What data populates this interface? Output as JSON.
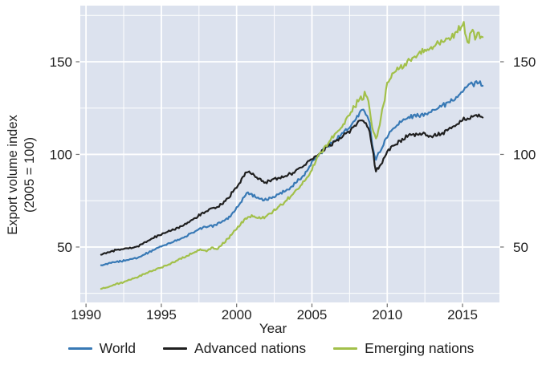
{
  "figure": {
    "y_axis_title_line1": "Export volume index",
    "y_axis_title_line2": "(2005 = 100)",
    "x_axis_title": "Year"
  },
  "chart_data": {
    "type": "line",
    "title": "",
    "xlabel": "Year",
    "ylabel": "Export volume index (2005 = 100)",
    "x_ticks": [
      1990,
      1995,
      2000,
      2005,
      2010,
      2015
    ],
    "y_ticks": [
      50,
      100,
      150
    ],
    "y_ticks_right": [
      50,
      100,
      150
    ],
    "x_minor_gridlines": [
      1992.5,
      1997.5,
      2002.5,
      2007.5,
      2012.5
    ],
    "y_minor_gridlines": [
      25,
      75,
      125,
      175
    ],
    "xlim": [
      1989.62,
      2017.45
    ],
    "ylim": [
      20.1,
      180.3
    ],
    "x_range_data": [
      1991.0,
      2016.3
    ],
    "grid": "white gridlines on light blue panel",
    "legend_position": "bottom",
    "colors": {
      "plot_background": "#dce2ee",
      "gridline": "#ffffff",
      "axis_text": "#1f1f1f",
      "tick_mark": "#6e6e6e",
      "world": "#3879b5",
      "advanced": "#1f1f1f",
      "emerging": "#a2c04a"
    },
    "series": [
      {
        "name": "World",
        "color": "#3879b5",
        "noise": 0.9,
        "anchors": [
          [
            1991,
            40
          ],
          [
            1991.5,
            41
          ],
          [
            1992,
            42
          ],
          [
            1992.5,
            42.6
          ],
          [
            1993,
            43.5
          ],
          [
            1993.5,
            44.5
          ],
          [
            1994,
            46.5
          ],
          [
            1994.5,
            48.5
          ],
          [
            1995,
            50.5
          ],
          [
            1995.5,
            52
          ],
          [
            1996,
            53.5
          ],
          [
            1996.5,
            55
          ],
          [
            1997,
            57.5
          ],
          [
            1997.5,
            59.5
          ],
          [
            1998,
            61
          ],
          [
            1998.5,
            61.6
          ],
          [
            1999,
            63.5
          ],
          [
            1999.5,
            66
          ],
          [
            2000,
            71
          ],
          [
            2000.7,
            79.5
          ],
          [
            2001.2,
            77.5
          ],
          [
            2001.8,
            75
          ],
          [
            2002.3,
            76.5
          ],
          [
            2003,
            79.5
          ],
          [
            2003.5,
            81.5
          ],
          [
            2004,
            85.5
          ],
          [
            2004.5,
            89
          ],
          [
            2005,
            96
          ],
          [
            2005.5,
            100
          ],
          [
            2006,
            104.5
          ],
          [
            2006.5,
            107
          ],
          [
            2007,
            111
          ],
          [
            2007.5,
            114.5
          ],
          [
            2008,
            120
          ],
          [
            2008.3,
            124
          ],
          [
            2008.6,
            122
          ],
          [
            2008.8,
            119
          ],
          [
            2009,
            106
          ],
          [
            2009.2,
            97
          ],
          [
            2009.45,
            100.5
          ],
          [
            2009.7,
            104.5
          ],
          [
            2010,
            110
          ],
          [
            2010.4,
            114
          ],
          [
            2010.8,
            117
          ],
          [
            2011.2,
            119
          ],
          [
            2011.6,
            120.5
          ],
          [
            2012,
            121
          ],
          [
            2012.5,
            122
          ],
          [
            2013,
            123.5
          ],
          [
            2013.5,
            125.5
          ],
          [
            2014,
            127.5
          ],
          [
            2014.5,
            130
          ],
          [
            2015,
            134
          ],
          [
            2015.3,
            136.5
          ],
          [
            2015.55,
            139.5
          ],
          [
            2015.7,
            137
          ],
          [
            2015.9,
            139.5
          ],
          [
            2016.05,
            137.5
          ],
          [
            2016.15,
            139
          ],
          [
            2016.3,
            137.5
          ]
        ]
      },
      {
        "name": "Advanced nations",
        "color": "#1f1f1f",
        "noise": 0.9,
        "anchors": [
          [
            1991,
            46
          ],
          [
            1991.5,
            47
          ],
          [
            1992,
            48.5
          ],
          [
            1992.5,
            49
          ],
          [
            1993,
            49.5
          ],
          [
            1993.5,
            50.5
          ],
          [
            1994,
            53
          ],
          [
            1994.5,
            55
          ],
          [
            1995,
            57
          ],
          [
            1995.5,
            58.5
          ],
          [
            1996,
            60
          ],
          [
            1996.5,
            62
          ],
          [
            1997,
            64.5
          ],
          [
            1997.5,
            67
          ],
          [
            1998,
            69.5
          ],
          [
            1998.4,
            71
          ],
          [
            1998.7,
            71.5
          ],
          [
            1999.1,
            74
          ],
          [
            1999.5,
            77
          ],
          [
            2000,
            82.5
          ],
          [
            2000.7,
            91
          ],
          [
            2001.1,
            89
          ],
          [
            2001.9,
            84.5
          ],
          [
            2002.4,
            86.5
          ],
          [
            2003,
            87.5
          ],
          [
            2003.7,
            90
          ],
          [
            2004.3,
            93
          ],
          [
            2005,
            97.5
          ],
          [
            2005.5,
            100
          ],
          [
            2006,
            104
          ],
          [
            2006.5,
            106.5
          ],
          [
            2007,
            109.5
          ],
          [
            2007.5,
            112.5
          ],
          [
            2008,
            116.5
          ],
          [
            2008.3,
            118.5
          ],
          [
            2008.6,
            117
          ],
          [
            2008.85,
            112
          ],
          [
            2009.05,
            101
          ],
          [
            2009.25,
            91
          ],
          [
            2009.5,
            93.5
          ],
          [
            2009.75,
            97.5
          ],
          [
            2010,
            101.5
          ],
          [
            2010.4,
            104.5
          ],
          [
            2010.8,
            107
          ],
          [
            2011.3,
            109.5
          ],
          [
            2011.7,
            110.5
          ],
          [
            2012.1,
            111
          ],
          [
            2012.5,
            111
          ],
          [
            2012.9,
            109.5
          ],
          [
            2013.3,
            110.5
          ],
          [
            2013.7,
            111.5
          ],
          [
            2014.1,
            113.5
          ],
          [
            2014.5,
            115.5
          ],
          [
            2014.8,
            117.5
          ],
          [
            2015.1,
            119
          ],
          [
            2015.4,
            119.5
          ],
          [
            2015.7,
            120.5
          ],
          [
            2016,
            121
          ],
          [
            2016.15,
            120.5
          ],
          [
            2016.3,
            119.5
          ]
        ]
      },
      {
        "name": "Emerging nations",
        "color": "#a2c04a",
        "noise": 1.1,
        "anchors": [
          [
            1991,
            27.5
          ],
          [
            1991.5,
            28.5
          ],
          [
            1992,
            30
          ],
          [
            1992.5,
            31
          ],
          [
            1993,
            32.5
          ],
          [
            1993.5,
            34
          ],
          [
            1994,
            36
          ],
          [
            1994.5,
            37.5
          ],
          [
            1995,
            39
          ],
          [
            1995.5,
            40.5
          ],
          [
            1996,
            42.5
          ],
          [
            1996.5,
            44.5
          ],
          [
            1997,
            46.5
          ],
          [
            1997.6,
            48.5
          ],
          [
            1998,
            48
          ],
          [
            1998.4,
            49.8
          ],
          [
            1998.7,
            48.5
          ],
          [
            1999,
            51
          ],
          [
            1999.5,
            55
          ],
          [
            2000,
            60
          ],
          [
            2000.5,
            64.5
          ],
          [
            2001,
            67
          ],
          [
            2001.4,
            65.5
          ],
          [
            2001.8,
            66
          ],
          [
            2002.2,
            68
          ],
          [
            2002.7,
            71
          ],
          [
            2003.2,
            74.5
          ],
          [
            2003.7,
            78
          ],
          [
            2004.2,
            82.5
          ],
          [
            2004.7,
            87.5
          ],
          [
            2005,
            92
          ],
          [
            2005.5,
            100
          ],
          [
            2006,
            105.5
          ],
          [
            2006.5,
            110
          ],
          [
            2007,
            115.5
          ],
          [
            2007.5,
            121.5
          ],
          [
            2008,
            128
          ],
          [
            2008.2,
            131.5
          ],
          [
            2008.35,
            129.5
          ],
          [
            2008.55,
            134
          ],
          [
            2008.8,
            127
          ],
          [
            2009,
            115
          ],
          [
            2009.25,
            108
          ],
          [
            2009.5,
            116
          ],
          [
            2009.75,
            127
          ],
          [
            2010,
            138
          ],
          [
            2010.35,
            143.5
          ],
          [
            2010.8,
            146.5
          ],
          [
            2011.2,
            149
          ],
          [
            2011.6,
            151.5
          ],
          [
            2012,
            153.5
          ],
          [
            2012.5,
            156
          ],
          [
            2013,
            158
          ],
          [
            2013.5,
            160.5
          ],
          [
            2014,
            162.5
          ],
          [
            2014.4,
            164.5
          ],
          [
            2014.75,
            167.5
          ],
          [
            2015,
            169.5
          ],
          [
            2015.1,
            171
          ],
          [
            2015.25,
            162
          ],
          [
            2015.4,
            158.5
          ],
          [
            2015.55,
            165.5
          ],
          [
            2015.7,
            167
          ],
          [
            2015.85,
            160.5
          ],
          [
            2016,
            165
          ],
          [
            2016.1,
            166.5
          ],
          [
            2016.2,
            161.5
          ],
          [
            2016.3,
            163
          ]
        ]
      }
    ]
  }
}
